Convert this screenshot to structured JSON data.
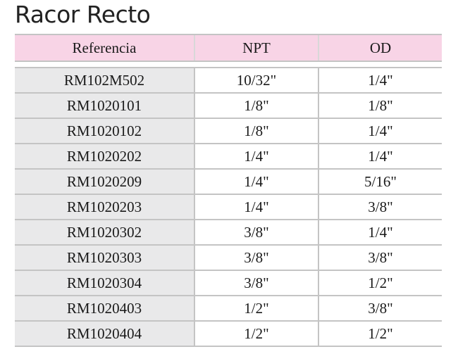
{
  "title": "Racor Recto",
  "table": {
    "headers": [
      "Referencia",
      "NPT",
      "OD"
    ],
    "rows": [
      [
        "RM102M502",
        "10/32\"",
        "1/4\""
      ],
      [
        "RM1020101",
        "1/8\"",
        "1/8\""
      ],
      [
        "RM1020102",
        "1/8\"",
        "1/4\""
      ],
      [
        "RM1020202",
        "1/4\"",
        "1/4\""
      ],
      [
        "RM1020209",
        "1/4\"",
        "5/16\""
      ],
      [
        "RM1020203",
        "1/4\"",
        "3/8\""
      ],
      [
        "RM1020302",
        "3/8\"",
        "1/4\""
      ],
      [
        "RM1020303",
        "3/8\"",
        "3/8\""
      ],
      [
        "RM1020304",
        "3/8\"",
        "1/2\""
      ],
      [
        "RM1020403",
        "1/2\"",
        "3/8\""
      ],
      [
        "RM1020404",
        "1/2\"",
        "1/2\""
      ]
    ]
  },
  "colors": {
    "header_bg": "#f8d4e6",
    "first_col_bg": "#e9e9ea",
    "rule": "#c4c4c4"
  }
}
